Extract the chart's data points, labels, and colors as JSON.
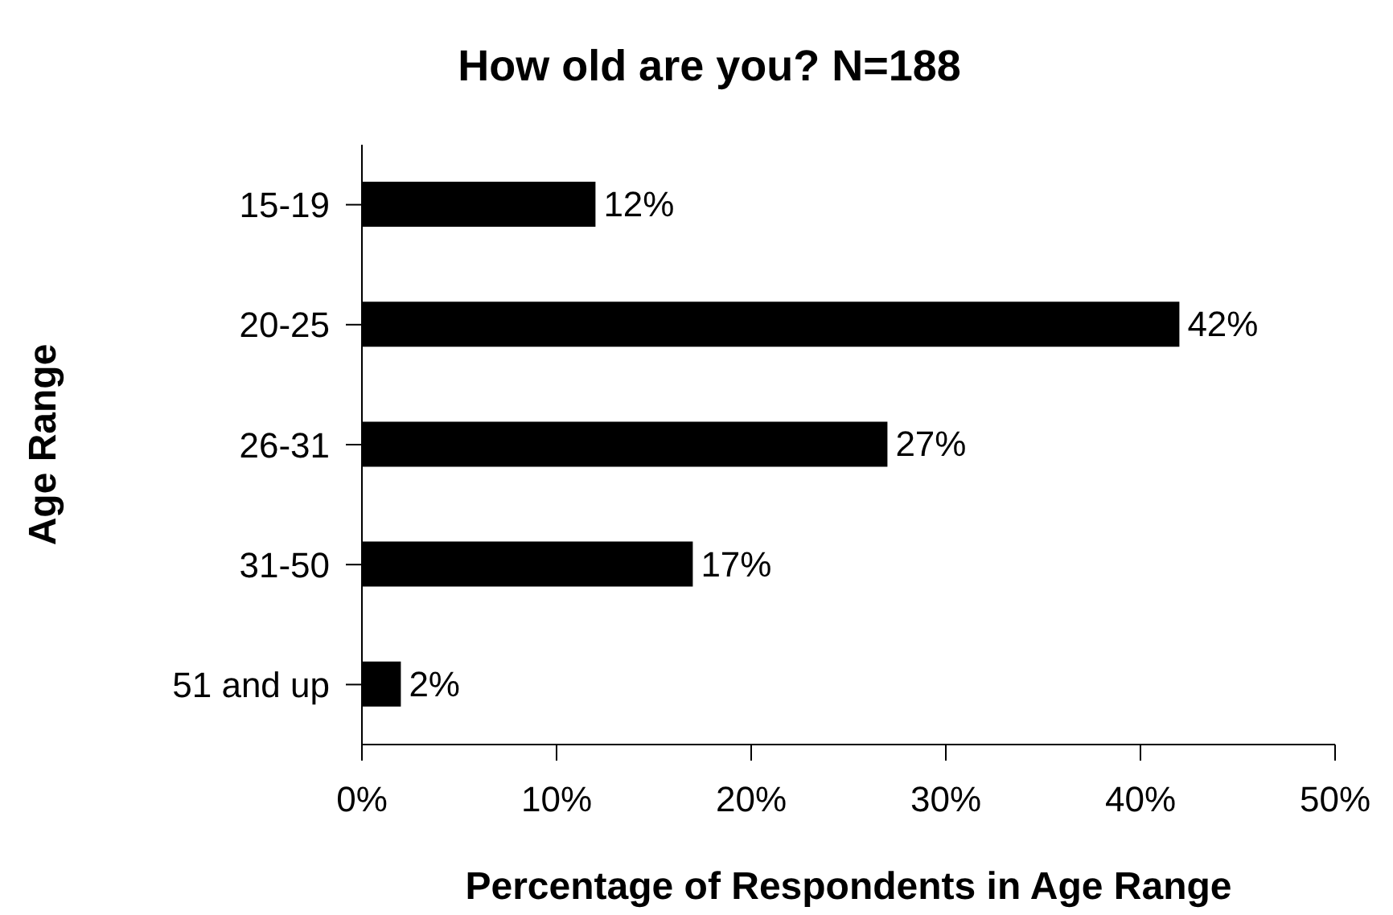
{
  "chart_data": {
    "type": "bar",
    "orientation": "horizontal",
    "title": "How old are you? N=188",
    "xlabel": "Percentage of Respondents in Age Range",
    "ylabel": "Age Range",
    "categories": [
      "15-19",
      "20-25",
      "26-31",
      "31-50",
      "51 and up"
    ],
    "series": [
      {
        "color": "#000000",
        "values": [
          12,
          42,
          27,
          17,
          2
        ],
        "value_labels": [
          "12%",
          "42%",
          "27%",
          "17%",
          "2%"
        ]
      }
    ],
    "xlim": [
      0,
      50
    ],
    "xticks": [
      {
        "value": 0,
        "label": "0%"
      },
      {
        "value": 10,
        "label": "10%"
      },
      {
        "value": 20,
        "label": "20%"
      },
      {
        "value": 30,
        "label": "30%"
      },
      {
        "value": 40,
        "label": "40%"
      },
      {
        "value": 50,
        "label": "50%"
      }
    ],
    "grid": false,
    "legend": false
  }
}
